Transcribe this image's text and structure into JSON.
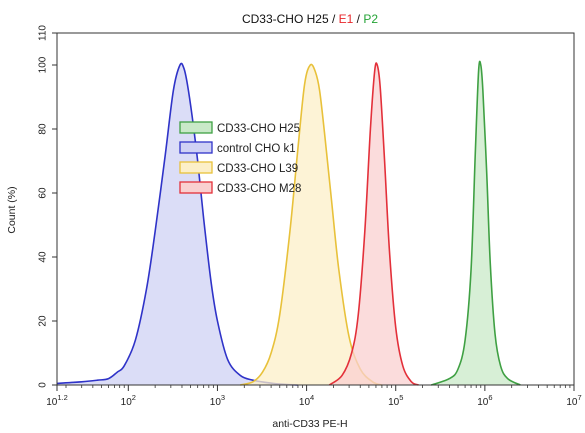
{
  "chart_data": {
    "type": "area",
    "title_parts": [
      {
        "text": "CD33-CHO H25",
        "color": "#111111"
      },
      {
        "text": " / ",
        "color": "#111111"
      },
      {
        "text": "E1",
        "color": "#e8262b"
      },
      {
        "text": " / ",
        "color": "#111111"
      },
      {
        "text": "P2",
        "color": "#23a335"
      }
    ],
    "xlabel": "anti-CD33  PE-H",
    "ylabel": "Count  (%)",
    "x_scale": "log",
    "xlim": [
      15.85,
      10000000
    ],
    "ylim": [
      0,
      110
    ],
    "x_ticks": [
      {
        "value": 15.85,
        "base": "10",
        "exp": "1.2"
      },
      {
        "value": 100,
        "base": "10",
        "exp": "2"
      },
      {
        "value": 1000,
        "base": "10",
        "exp": "3"
      },
      {
        "value": 10000,
        "base": "10",
        "exp": "4"
      },
      {
        "value": 100000,
        "base": "10",
        "exp": "5"
      },
      {
        "value": 1000000,
        "base": "10",
        "exp": "6"
      },
      {
        "value": 10000000,
        "base": "10",
        "exp": "7"
      }
    ],
    "y_ticks": [
      0,
      20,
      40,
      60,
      80,
      100,
      110
    ],
    "legend_position": "upper-left",
    "series": [
      {
        "name": "CD33-CHO H25",
        "color": "#3fa043",
        "fill": "#c9e9c8",
        "x": [
          250000,
          400000,
          500000,
          600000,
          700000,
          780000,
          850000,
          900000,
          950000,
          1050000,
          1150000,
          1300000,
          1500000,
          1800000,
          2500000
        ],
        "y": [
          0,
          2,
          5,
          14,
          36,
          72,
          98,
          100,
          92,
          66,
          38,
          16,
          6,
          2,
          0
        ]
      },
      {
        "name": "control CHO k1",
        "color": "#2f33c8",
        "fill": "#cfd1f4",
        "x": [
          15.85,
          30,
          45,
          60,
          75,
          90,
          120,
          160,
          200,
          260,
          320,
          380,
          420,
          460,
          520,
          600,
          700,
          850,
          1000,
          1300,
          1800,
          2500,
          3500,
          5000,
          8000
        ],
        "y": [
          0.5,
          1,
          1.5,
          2,
          4,
          6,
          14,
          30,
          48,
          72,
          92,
          100,
          99,
          94,
          84,
          70,
          52,
          32,
          20,
          8,
          3,
          1.5,
          0.8,
          0.3,
          0
        ]
      },
      {
        "name": "CD33-CHO L39",
        "color": "#e8c13a",
        "fill": "#fcefc8",
        "x": [
          1800,
          2500,
          3200,
          4000,
          5000,
          6500,
          8000,
          9500,
          11000,
          12500,
          14000,
          16000,
          19000,
          23000,
          30000,
          40000,
          55000,
          70000
        ],
        "y": [
          0,
          1,
          4,
          10,
          22,
          48,
          74,
          94,
          100,
          98,
          92,
          78,
          58,
          36,
          15,
          5,
          1,
          0
        ]
      },
      {
        "name": "CD33-CHO M28",
        "color": "#e3303a",
        "fill": "#f9d0d0",
        "x": [
          18000,
          25000,
          32000,
          38000,
          45000,
          52000,
          58000,
          62000,
          67000,
          75000,
          85000,
          100000,
          120000,
          150000,
          180000
        ],
        "y": [
          0,
          3,
          10,
          22,
          48,
          80,
          98,
          100,
          93,
          70,
          42,
          18,
          6,
          1,
          0
        ]
      }
    ]
  }
}
